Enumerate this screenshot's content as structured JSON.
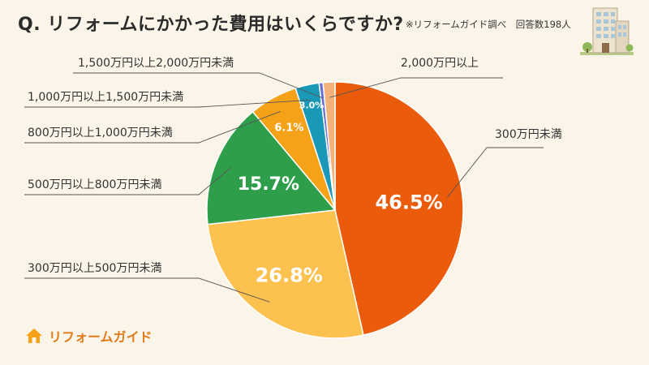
{
  "header": {
    "title": "Q. リフォームにかかった費用はいくらですか?",
    "source_note": "※リフォームガイド調べ　回答数198人"
  },
  "logo": {
    "text": "リフォームガイド"
  },
  "chart_data": {
    "type": "pie",
    "title": "",
    "start_angle_deg": 0,
    "direction": "clockwise",
    "slices": [
      {
        "label": "300万円未満",
        "value": 46.5,
        "value_label": "46.5%",
        "color": "#ea5b0c"
      },
      {
        "label": "300万円以上500万円未満",
        "value": 26.8,
        "value_label": "26.8%",
        "color": "#fcc14f"
      },
      {
        "label": "500万円以上800万円未満",
        "value": 15.7,
        "value_label": "15.7%",
        "color": "#2e9e4a"
      },
      {
        "label": "800万円以上1,000万円未満",
        "value": 6.1,
        "value_label": "6.1%",
        "color": "#f5a218"
      },
      {
        "label": "1,000万円以上1,500万円未満",
        "value": 3.0,
        "value_label": "3.0%",
        "color": "#1a98b8"
      },
      {
        "label": "1,500万円以上2,000万円未満",
        "value": 0.5,
        "value_label": "",
        "color": "#6a6fd8"
      },
      {
        "label": "2,000万円以上",
        "value": 1.5,
        "value_label": "",
        "color": "#f2b27a"
      }
    ]
  }
}
